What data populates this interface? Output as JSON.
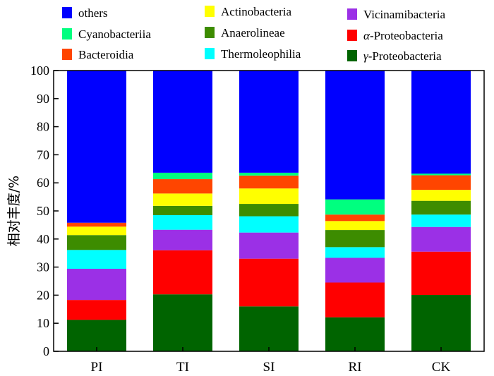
{
  "chart_data": {
    "type": "bar",
    "stacked": true,
    "ylabel": "相对丰度/%",
    "ylim": [
      0,
      100
    ],
    "yticks": [
      0,
      10,
      20,
      30,
      40,
      50,
      60,
      70,
      80,
      90,
      100
    ],
    "grid": false,
    "legend_position": "top",
    "categories": [
      "PI",
      "TI",
      "SI",
      "RI",
      "CK"
    ],
    "series": [
      {
        "name": "γ-Proteobacteria",
        "name_prefix": "γ",
        "name_suffix": "-Proteobacteria",
        "color": "#006400",
        "values": [
          11.2,
          20.3,
          16.0,
          12.1,
          20.1
        ]
      },
      {
        "name": "α-Proteobacteria",
        "name_prefix": "α",
        "name_suffix": "-Proteobacteria",
        "color": "#ff0000",
        "values": [
          7.1,
          15.7,
          17.0,
          12.4,
          15.4
        ]
      },
      {
        "name": "Vicinamibacteria",
        "color": "#9b30e6",
        "values": [
          11.1,
          7.3,
          9.3,
          8.8,
          8.8
        ]
      },
      {
        "name": "Thermoleophilia",
        "color": "#00ffff",
        "values": [
          6.7,
          5.2,
          5.8,
          3.8,
          4.4
        ]
      },
      {
        "name": "Anaerolineae",
        "color": "#3d8c00",
        "values": [
          5.3,
          3.3,
          4.4,
          6.1,
          4.9
        ]
      },
      {
        "name": "Actinobacteria",
        "color": "#ffff00",
        "values": [
          3.0,
          4.4,
          5.5,
          3.2,
          3.9
        ]
      },
      {
        "name": "Bacteroidia",
        "color": "#ff4500",
        "values": [
          1.4,
          5.1,
          4.6,
          2.3,
          5.2
        ]
      },
      {
        "name": "Cyanobacteriia",
        "color": "#00ff7f",
        "values": [
          0,
          2.3,
          1.0,
          5.4,
          0.6
        ]
      },
      {
        "name": "others",
        "color": "#0000ff",
        "values": [
          54.2,
          36.4,
          36.4,
          45.9,
          36.7
        ]
      }
    ]
  }
}
